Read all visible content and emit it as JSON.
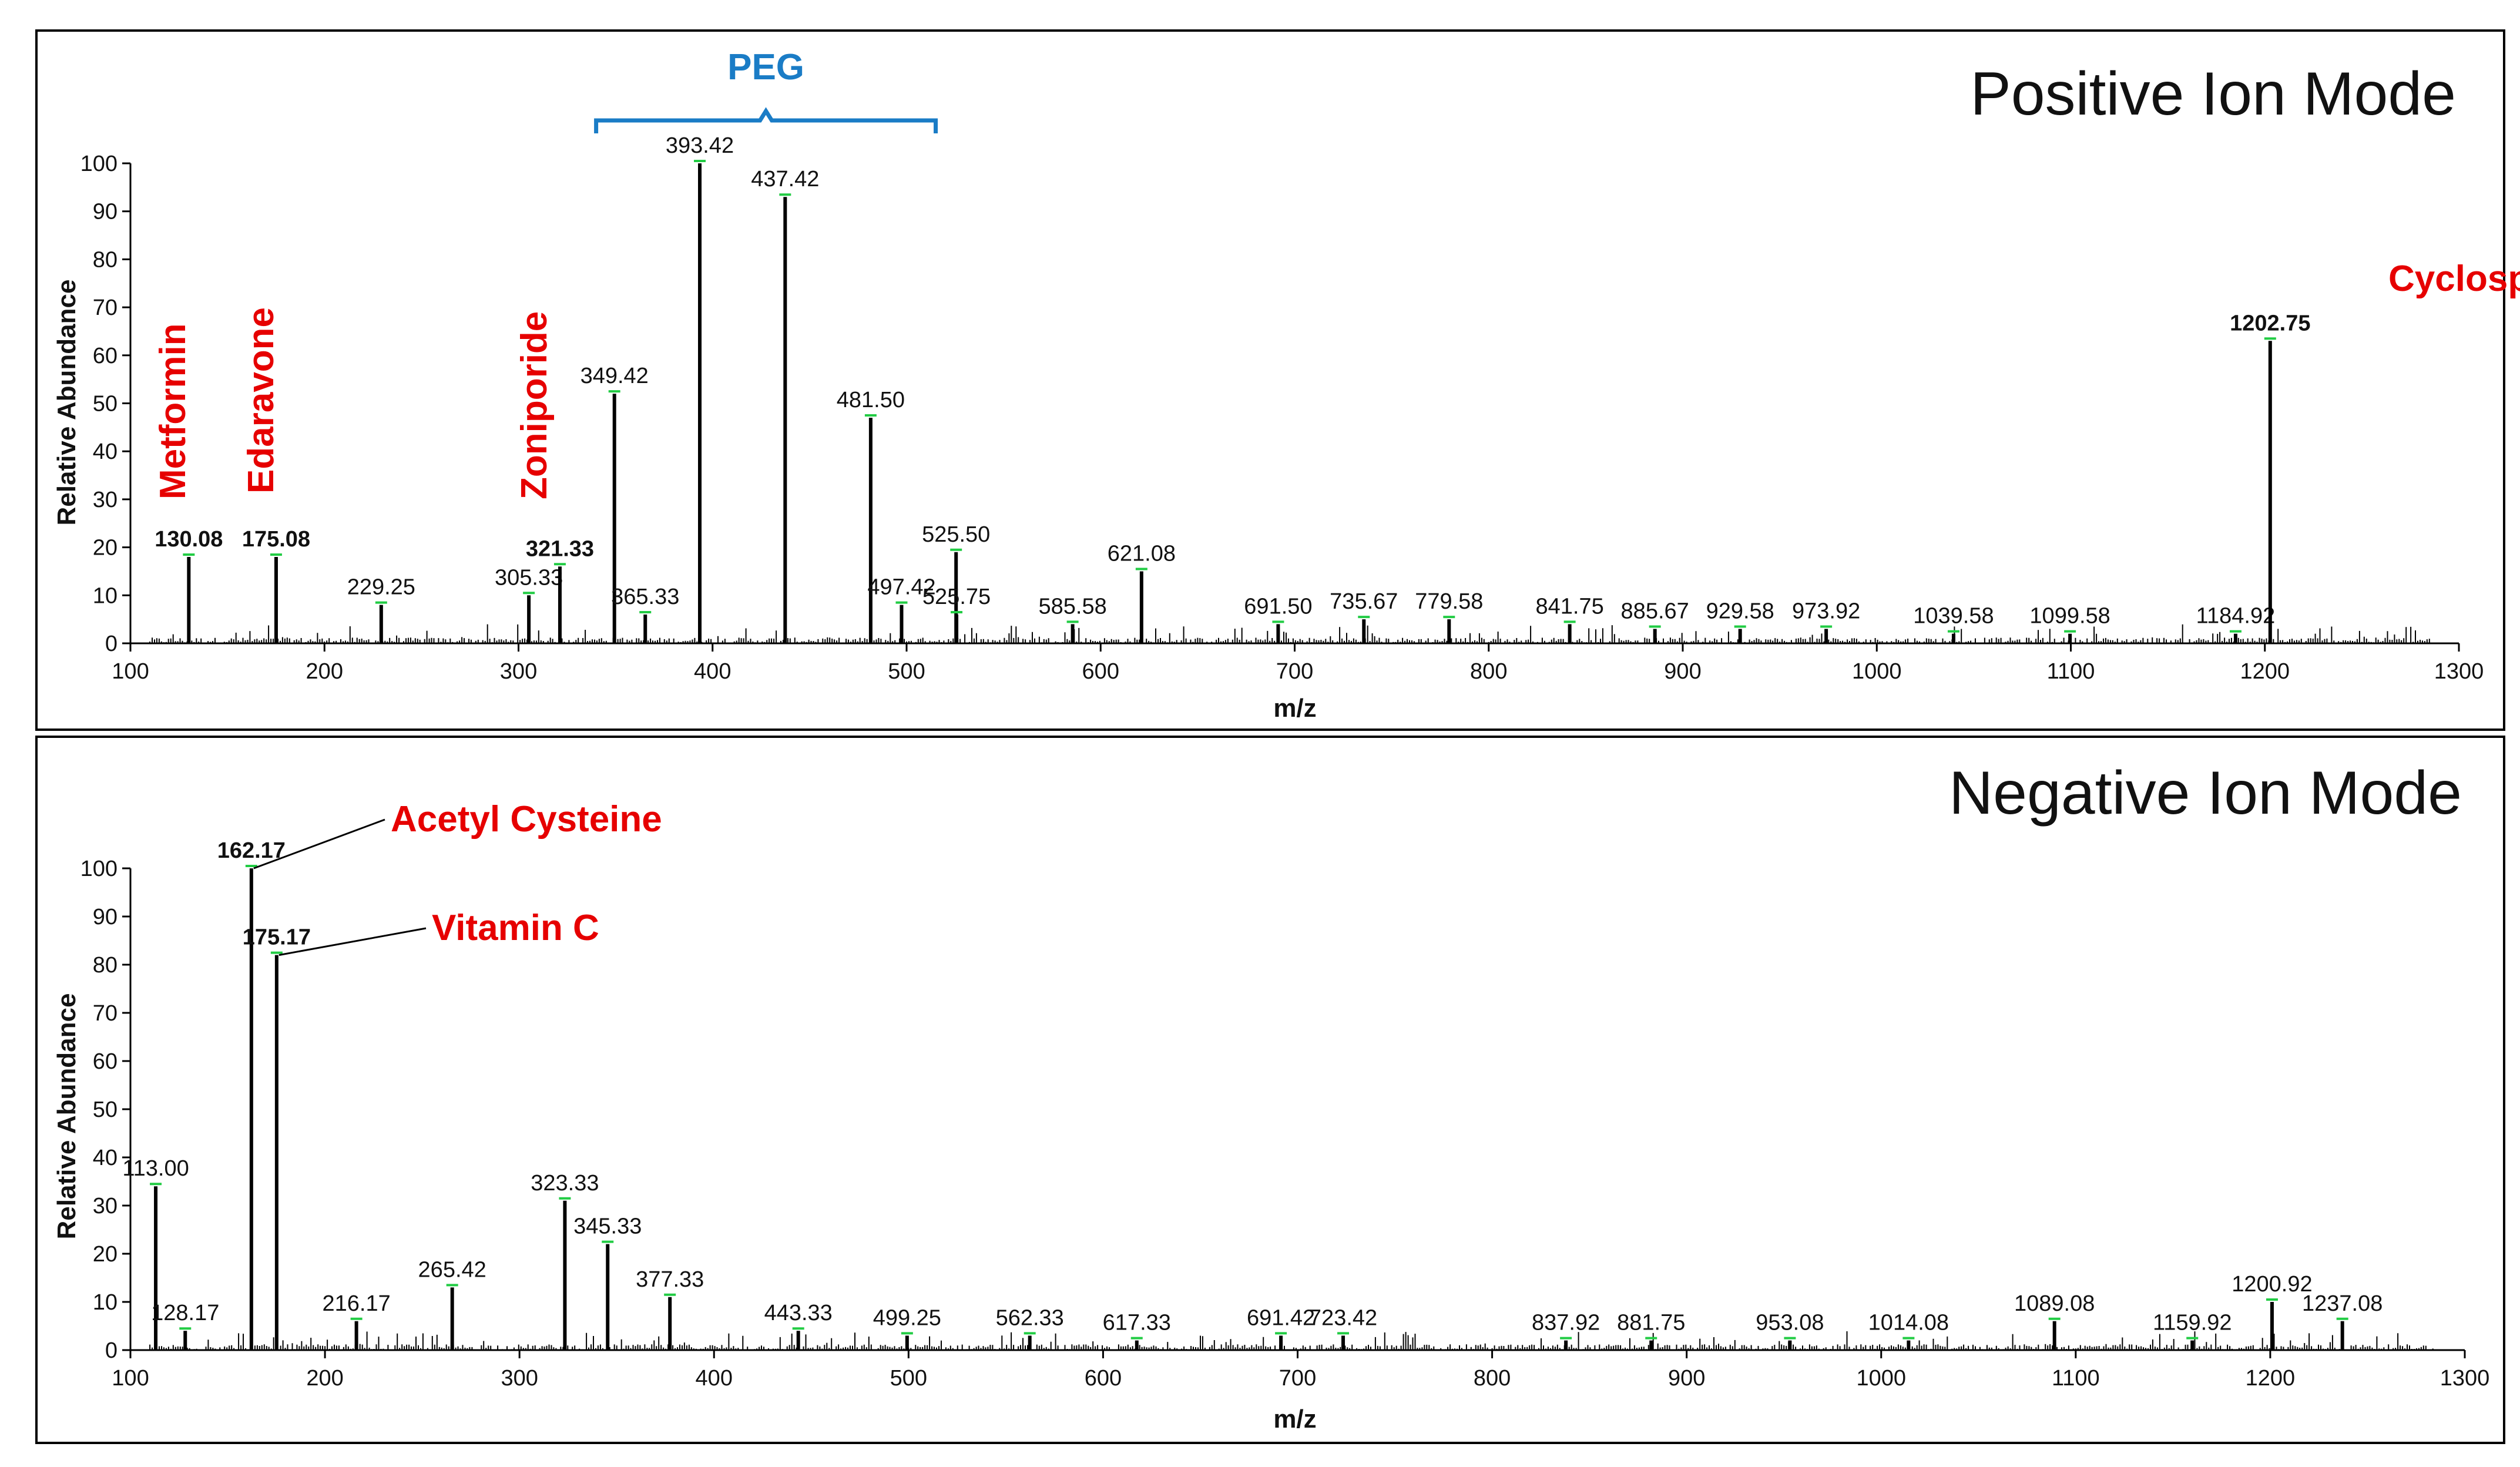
{
  "colors": {
    "annotation": "#e60000",
    "peg": "#1a7cc6",
    "marker": "#22cc44",
    "trace": "#000000"
  },
  "chart_data": [
    {
      "type": "line",
      "title": "Positive Ion Mode",
      "xlabel": "m/z",
      "ylabel": "Relative Abundance",
      "xlim": [
        100,
        1300
      ],
      "ylim": [
        0,
        100
      ],
      "xticks": [
        100,
        200,
        300,
        400,
        500,
        600,
        700,
        800,
        900,
        1000,
        1100,
        1200,
        1300
      ],
      "yticks": [
        0,
        10,
        20,
        30,
        40,
        50,
        60,
        70,
        80,
        90,
        100
      ],
      "peaks": [
        {
          "mz": 130.08,
          "rel": 18,
          "label": "130.08",
          "bold": true
        },
        {
          "mz": 175.08,
          "rel": 18,
          "label": "175.08",
          "bold": true
        },
        {
          "mz": 229.25,
          "rel": 8,
          "label": "229.25",
          "bold": false
        },
        {
          "mz": 305.33,
          "rel": 10,
          "label": "305.33",
          "bold": false
        },
        {
          "mz": 321.33,
          "rel": 16,
          "label": "321.33",
          "bold": true
        },
        {
          "mz": 349.42,
          "rel": 52,
          "label": "349.42",
          "bold": false
        },
        {
          "mz": 365.33,
          "rel": 6,
          "label": "365.33",
          "bold": false
        },
        {
          "mz": 393.42,
          "rel": 100,
          "label": "393.42",
          "bold": false
        },
        {
          "mz": 437.42,
          "rel": 93,
          "label": "437.42",
          "bold": false
        },
        {
          "mz": 481.5,
          "rel": 47,
          "label": "481.50",
          "bold": false
        },
        {
          "mz": 497.42,
          "rel": 8,
          "label": "497.42",
          "bold": false
        },
        {
          "mz": 525.5,
          "rel": 19,
          "label": "525.50",
          "bold": false
        },
        {
          "mz": 525.75,
          "rel": 6,
          "label": "525.75",
          "bold": false
        },
        {
          "mz": 585.58,
          "rel": 4,
          "label": "585.58",
          "bold": false
        },
        {
          "mz": 621.08,
          "rel": 15,
          "label": "621.08",
          "bold": false
        },
        {
          "mz": 691.5,
          "rel": 4,
          "label": "691.50",
          "bold": false
        },
        {
          "mz": 735.67,
          "rel": 5,
          "label": "735.67",
          "bold": false
        },
        {
          "mz": 779.58,
          "rel": 5,
          "label": "779.58",
          "bold": false
        },
        {
          "mz": 841.75,
          "rel": 4,
          "label": "841.75",
          "bold": false
        },
        {
          "mz": 885.67,
          "rel": 3,
          "label": "885.67",
          "bold": false
        },
        {
          "mz": 929.58,
          "rel": 3,
          "label": "929.58",
          "bold": false
        },
        {
          "mz": 973.92,
          "rel": 3,
          "label": "973.92",
          "bold": false
        },
        {
          "mz": 1039.58,
          "rel": 2,
          "label": "1039.58",
          "bold": false
        },
        {
          "mz": 1099.58,
          "rel": 2,
          "label": "1099.58",
          "bold": false
        },
        {
          "mz": 1184.92,
          "rel": 2,
          "label": "1184.92",
          "bold": false
        },
        {
          "mz": 1202.75,
          "rel": 63,
          "label": "1202.75",
          "bold": true
        }
      ],
      "annotations": [
        {
          "text": "Metformin",
          "mz": 130.08,
          "color": "annotation"
        },
        {
          "text": "Edaravone",
          "mz": 175.08,
          "color": "annotation"
        },
        {
          "text": "Zoniporide",
          "mz": 321.33,
          "color": "annotation"
        },
        {
          "text": "Cyclosporine A",
          "mz": 1202.75,
          "color": "annotation"
        }
      ],
      "bracket": {
        "label": "PEG",
        "from_mz": 340,
        "to_mz": 515
      }
    },
    {
      "type": "line",
      "title": "Negative Ion Mode",
      "xlabel": "m/z",
      "ylabel": "Relative Abundance",
      "xlim": [
        100,
        1300
      ],
      "ylim": [
        0,
        100
      ],
      "xticks": [
        100,
        200,
        300,
        400,
        500,
        600,
        700,
        800,
        900,
        1000,
        1100,
        1200,
        1300
      ],
      "yticks": [
        0,
        10,
        20,
        30,
        40,
        50,
        60,
        70,
        80,
        90,
        100
      ],
      "peaks": [
        {
          "mz": 113.0,
          "rel": 34,
          "label": "113.00",
          "bold": false
        },
        {
          "mz": 128.17,
          "rel": 4,
          "label": "128.17",
          "bold": false
        },
        {
          "mz": 162.17,
          "rel": 100,
          "label": "162.17",
          "bold": true
        },
        {
          "mz": 175.17,
          "rel": 82,
          "label": "175.17",
          "bold": true
        },
        {
          "mz": 216.17,
          "rel": 6,
          "label": "216.17",
          "bold": false
        },
        {
          "mz": 265.42,
          "rel": 13,
          "label": "265.42",
          "bold": false
        },
        {
          "mz": 323.33,
          "rel": 31,
          "label": "323.33",
          "bold": false
        },
        {
          "mz": 345.33,
          "rel": 22,
          "label": "345.33",
          "bold": false
        },
        {
          "mz": 377.33,
          "rel": 11,
          "label": "377.33",
          "bold": false
        },
        {
          "mz": 443.33,
          "rel": 4,
          "label": "443.33",
          "bold": false
        },
        {
          "mz": 499.25,
          "rel": 3,
          "label": "499.25",
          "bold": false
        },
        {
          "mz": 562.33,
          "rel": 3,
          "label": "562.33",
          "bold": false
        },
        {
          "mz": 617.33,
          "rel": 2,
          "label": "617.33",
          "bold": false
        },
        {
          "mz": 691.42,
          "rel": 3,
          "label": "691.42",
          "bold": false
        },
        {
          "mz": 723.42,
          "rel": 3,
          "label": "723.42",
          "bold": false
        },
        {
          "mz": 837.92,
          "rel": 2,
          "label": "837.92",
          "bold": false
        },
        {
          "mz": 881.75,
          "rel": 2,
          "label": "881.75",
          "bold": false
        },
        {
          "mz": 953.08,
          "rel": 2,
          "label": "953.08",
          "bold": false
        },
        {
          "mz": 1014.08,
          "rel": 2,
          "label": "1014.08",
          "bold": false
        },
        {
          "mz": 1089.08,
          "rel": 6,
          "label": "1089.08",
          "bold": false
        },
        {
          "mz": 1159.92,
          "rel": 2,
          "label": "1159.92",
          "bold": false
        },
        {
          "mz": 1200.92,
          "rel": 10,
          "label": "1200.92",
          "bold": false
        },
        {
          "mz": 1237.08,
          "rel": 6,
          "label": "1237.08",
          "bold": false
        }
      ],
      "annotations": [
        {
          "text": "Acetyl Cysteine",
          "mz": 162.17,
          "color": "annotation"
        },
        {
          "text": "Vitamin C",
          "mz": 175.17,
          "color": "annotation"
        }
      ]
    }
  ]
}
